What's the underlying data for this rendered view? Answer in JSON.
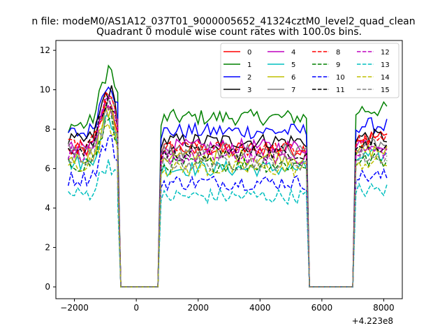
{
  "figure": {
    "suptitle": "n file: modeM0/AS1A12_037T01_9000005652_41324cztM0_level2_quad_clean"
  },
  "chart_data": {
    "type": "line",
    "title": "Quadrant 0 module wise count rates with 100.0s bins.",
    "xlabel": "",
    "ylabel": "",
    "x_offset_label": "+4.223e8",
    "xlim": [
      -2600,
      8600
    ],
    "ylim": [
      -0.6,
      12.5
    ],
    "xticks": [
      -2000,
      0,
      2000,
      4000,
      6000,
      8000
    ],
    "yticks": [
      0,
      2,
      4,
      6,
      8,
      10,
      12
    ],
    "grid": false,
    "legend": {
      "placement": "top-right",
      "columns": 4
    },
    "segments": [
      {
        "x_start": -2200,
        "x_end": -600
      },
      {
        "x_start": 900,
        "x_end": 5500
      },
      {
        "x_start": 7200,
        "x_end": 8100
      }
    ],
    "zero_segments": [
      [
        -500,
        700
      ],
      [
        5700,
        7000
      ]
    ],
    "series": [
      {
        "name": "0",
        "color": "#ff0000",
        "dash": "solid",
        "levels": [
          6.9,
          7.0,
          7.6
        ]
      },
      {
        "name": "1",
        "color": "#008000",
        "dash": "solid",
        "levels": [
          8.2,
          8.6,
          9.0
        ]
      },
      {
        "name": "2",
        "color": "#0000ff",
        "dash": "solid",
        "levels": [
          7.8,
          7.9,
          8.2
        ]
      },
      {
        "name": "3",
        "color": "#000000",
        "dash": "solid",
        "levels": [
          7.4,
          7.4,
          7.6
        ]
      },
      {
        "name": "4",
        "color": "#bf00bf",
        "dash": "solid",
        "levels": [
          7.0,
          7.1,
          7.3
        ]
      },
      {
        "name": "5",
        "color": "#00bfbf",
        "dash": "solid",
        "levels": [
          6.3,
          6.0,
          6.6
        ]
      },
      {
        "name": "6",
        "color": "#bfbf00",
        "dash": "solid",
        "levels": [
          6.6,
          6.6,
          6.9
        ]
      },
      {
        "name": "7",
        "color": "#808080",
        "dash": "solid",
        "levels": [
          7.0,
          6.9,
          7.2
        ]
      },
      {
        "name": "8",
        "color": "#ff0000",
        "dash": "dashed",
        "levels": [
          7.1,
          7.0,
          7.4
        ]
      },
      {
        "name": "9",
        "color": "#008000",
        "dash": "dashed",
        "levels": [
          6.2,
          6.2,
          6.4
        ]
      },
      {
        "name": "10",
        "color": "#0000ff",
        "dash": "dashed",
        "levels": [
          5.5,
          5.3,
          5.6
        ]
      },
      {
        "name": "11",
        "color": "#000000",
        "dash": "dashed",
        "levels": [
          7.0,
          6.8,
          7.2
        ]
      },
      {
        "name": "12",
        "color": "#bf00bf",
        "dash": "dashed",
        "levels": [
          6.8,
          6.6,
          6.9
        ]
      },
      {
        "name": "13",
        "color": "#00bfbf",
        "dash": "dashed",
        "levels": [
          4.7,
          4.6,
          4.9
        ]
      },
      {
        "name": "14",
        "color": "#bfbf00",
        "dash": "dashed",
        "levels": [
          6.2,
          6.0,
          6.3
        ]
      },
      {
        "name": "15",
        "color": "#808080",
        "dash": "dashed",
        "levels": [
          6.4,
          6.3,
          6.6
        ]
      }
    ],
    "peak": {
      "x_center": -900,
      "x_width": 350,
      "factor": 1.35
    }
  }
}
